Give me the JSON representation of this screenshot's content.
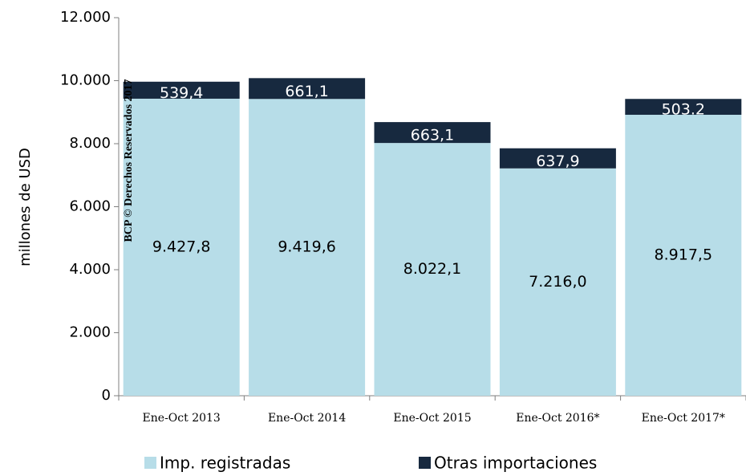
{
  "chart_data": {
    "type": "stacked_bar",
    "y_label": "millones de  USD",
    "annotation": "BCP © Derechos Reservados 2017",
    "categories": [
      "Ene-Oct 2013",
      "Ene-Oct 2014",
      "Ene-Oct 2015",
      "Ene-Oct 2016*",
      "Ene-Oct 2017*"
    ],
    "series": [
      {
        "name": "Imp. registradas",
        "color": "#b7dde8",
        "values": [
          9427.8,
          9419.6,
          8022.1,
          7216.0,
          8917.5
        ],
        "value_labels": [
          "9.427,8",
          "9.419,6",
          "8.022,1",
          "7.216,0",
          "8.917,5"
        ]
      },
      {
        "name": "Otras importaciones",
        "color": "#17293f",
        "values": [
          539.4,
          661.1,
          663.1,
          637.9,
          503.2
        ],
        "value_labels": [
          "539,4",
          "661,1",
          "663,1",
          "637,9",
          "503.2"
        ]
      }
    ],
    "ylim": [
      0,
      12000
    ],
    "yticks": [
      0,
      {
        "value": 2000,
        "label": "2.000"
      },
      {
        "value": 4000,
        "label": "4.000"
      },
      {
        "value": 6000,
        "label": "6.000"
      },
      {
        "value": 8000,
        "label": "8.000"
      },
      {
        "value": 10000,
        "label": "10.000"
      },
      {
        "value": 12000,
        "label": "12.000"
      }
    ],
    "legend": "bottom"
  }
}
